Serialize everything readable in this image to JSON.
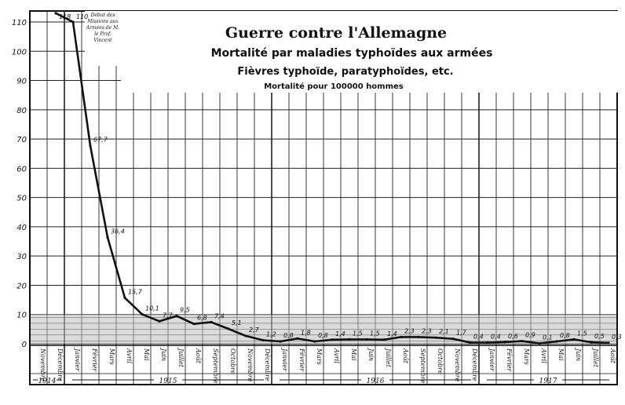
{
  "chart_data": {
    "type": "line",
    "title": "Guerre contre l'Allemagne",
    "subtitle_lines": [
      "Mortalité par maladies typhoïdes aux armées",
      "Fièvres typhoïde, paratyphoïdes, etc.",
      "Mortalité pour 100000 hommes"
    ],
    "ylim": [
      0,
      115
    ],
    "y_ticks": [
      0,
      10,
      20,
      30,
      40,
      50,
      60,
      70,
      80,
      90,
      100,
      110
    ],
    "y_tick_labels": [
      "0",
      "10",
      "20",
      "30",
      "40",
      "50",
      "60",
      "70",
      "80",
      "90",
      "100",
      "110"
    ],
    "months": [
      "Novembre",
      "Décembre",
      "Janvier",
      "Février",
      "Mars",
      "Avril",
      "Mai",
      "Juin",
      "Juillet",
      "Août",
      "Septembre",
      "Octobre",
      "Novembre",
      "Décembre",
      "Janvier",
      "Février",
      "Mars",
      "Avril",
      "Mai",
      "Juin",
      "Juillet",
      "Août",
      "Septembre",
      "Octobre",
      "Novembre",
      "Décembre",
      "Janvier",
      "Février",
      "Mars",
      "Avril",
      "Mai",
      "Juin",
      "Juillet",
      "Août"
    ],
    "years": [
      {
        "label": "1914",
        "start": 0,
        "end": 1
      },
      {
        "label": "1915",
        "start": 2,
        "end": 13
      },
      {
        "label": "1916",
        "start": 14,
        "end": 25
      },
      {
        "label": "1917",
        "start": 26,
        "end": 33
      }
    ],
    "series": [
      {
        "values": [
          null,
          118,
          110,
          67.7,
          36.4,
          15.7,
          10.1,
          7.7,
          9.5,
          6.8,
          7.4,
          5.1,
          2.7,
          1.2,
          0.8,
          1.8,
          0.8,
          1.4,
          1.5,
          1.5,
          1.4,
          2.3,
          2.3,
          2.1,
          1.7,
          0.4,
          0.4,
          0.6,
          0.9,
          0.1,
          0.8,
          1.5,
          0.5,
          0.3
        ],
        "data_labels": [
          "",
          "118",
          "110",
          "67,7",
          "36,4",
          "15,7",
          "10,1",
          "7,7",
          "9,5",
          "6,8",
          "7,4",
          "5,1",
          "2,7",
          "1,2",
          "0,8",
          "1,8",
          "0,8",
          "1,4",
          "1,5",
          "1,5",
          "1,4",
          "2,3",
          "2,3",
          "2,1",
          "1,7",
          "0,4",
          "0,4",
          "0,6",
          "0,9",
          "0,1",
          "0,8",
          "1,5",
          "0,5",
          "0,3"
        ]
      }
    ],
    "annotation": "Début des Missions aux Armées de M. le Prof. Vincent",
    "grid": true,
    "legend": "none"
  }
}
